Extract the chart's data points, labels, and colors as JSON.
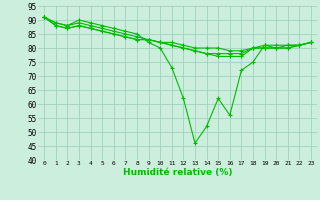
{
  "xlabel": "Humidité relative (%)",
  "xlim": [
    -0.5,
    23.5
  ],
  "ylim": [
    40,
    95
  ],
  "yticks": [
    40,
    45,
    50,
    55,
    60,
    65,
    70,
    75,
    80,
    85,
    90,
    95
  ],
  "xticks": [
    0,
    1,
    2,
    3,
    4,
    5,
    6,
    7,
    8,
    9,
    10,
    11,
    12,
    13,
    14,
    15,
    16,
    17,
    18,
    19,
    20,
    21,
    22,
    23
  ],
  "line_color": "#00bb00",
  "bg_color": "#cceedd",
  "grid_color": "#99ccbb",
  "series": [
    [
      91,
      89,
      88,
      90,
      89,
      88,
      87,
      86,
      85,
      82,
      80,
      73,
      62,
      46,
      52,
      62,
      56,
      72,
      75,
      81,
      80,
      81,
      81,
      82
    ],
    [
      91,
      89,
      88,
      89,
      88,
      87,
      86,
      85,
      84,
      83,
      82,
      81,
      80,
      79,
      78,
      77,
      77,
      77,
      80,
      80,
      80,
      80,
      81,
      82
    ],
    [
      91,
      88,
      87,
      88,
      87,
      86,
      85,
      84,
      83,
      83,
      82,
      81,
      80,
      79,
      78,
      78,
      78,
      78,
      80,
      80,
      80,
      80,
      81,
      82
    ],
    [
      91,
      88,
      87,
      88,
      87,
      86,
      85,
      84,
      83,
      83,
      82,
      82,
      81,
      80,
      80,
      80,
      79,
      79,
      80,
      81,
      81,
      81,
      81,
      82
    ]
  ]
}
